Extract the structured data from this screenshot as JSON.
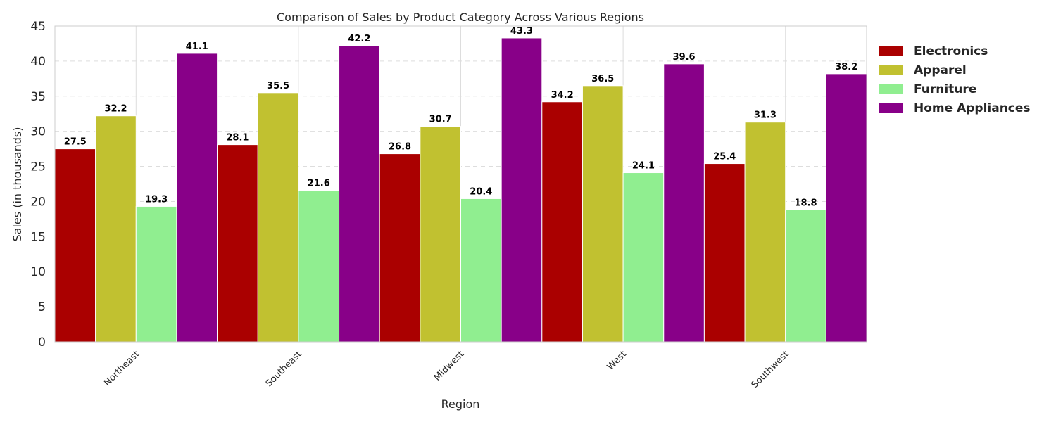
{
  "chart_data": {
    "type": "bar",
    "title": "Comparison of Sales by Product Category Across Various Regions",
    "xlabel": "Region",
    "ylabel": "Sales (in thousands)",
    "ylim": [
      0,
      45
    ],
    "yticks": [
      0,
      5,
      10,
      15,
      20,
      25,
      30,
      35,
      40,
      45
    ],
    "grid": true,
    "legend_position": "outside-top-right",
    "categories": [
      "Northeast",
      "Southeast",
      "Midwest",
      "West",
      "Southwest"
    ],
    "series": [
      {
        "name": "Electronics",
        "color": "#aa0000",
        "values": [
          27.5,
          28.1,
          26.8,
          34.2,
          25.4
        ]
      },
      {
        "name": "Apparel",
        "color": "#c1c130",
        "values": [
          32.2,
          35.5,
          30.7,
          36.5,
          31.3
        ]
      },
      {
        "name": "Furniture",
        "color": "#90ee90",
        "values": [
          19.3,
          21.6,
          20.4,
          24.1,
          18.8
        ]
      },
      {
        "name": "Home Appliances",
        "color": "#880088",
        "values": [
          41.1,
          42.2,
          43.3,
          39.6,
          38.2
        ]
      }
    ]
  }
}
